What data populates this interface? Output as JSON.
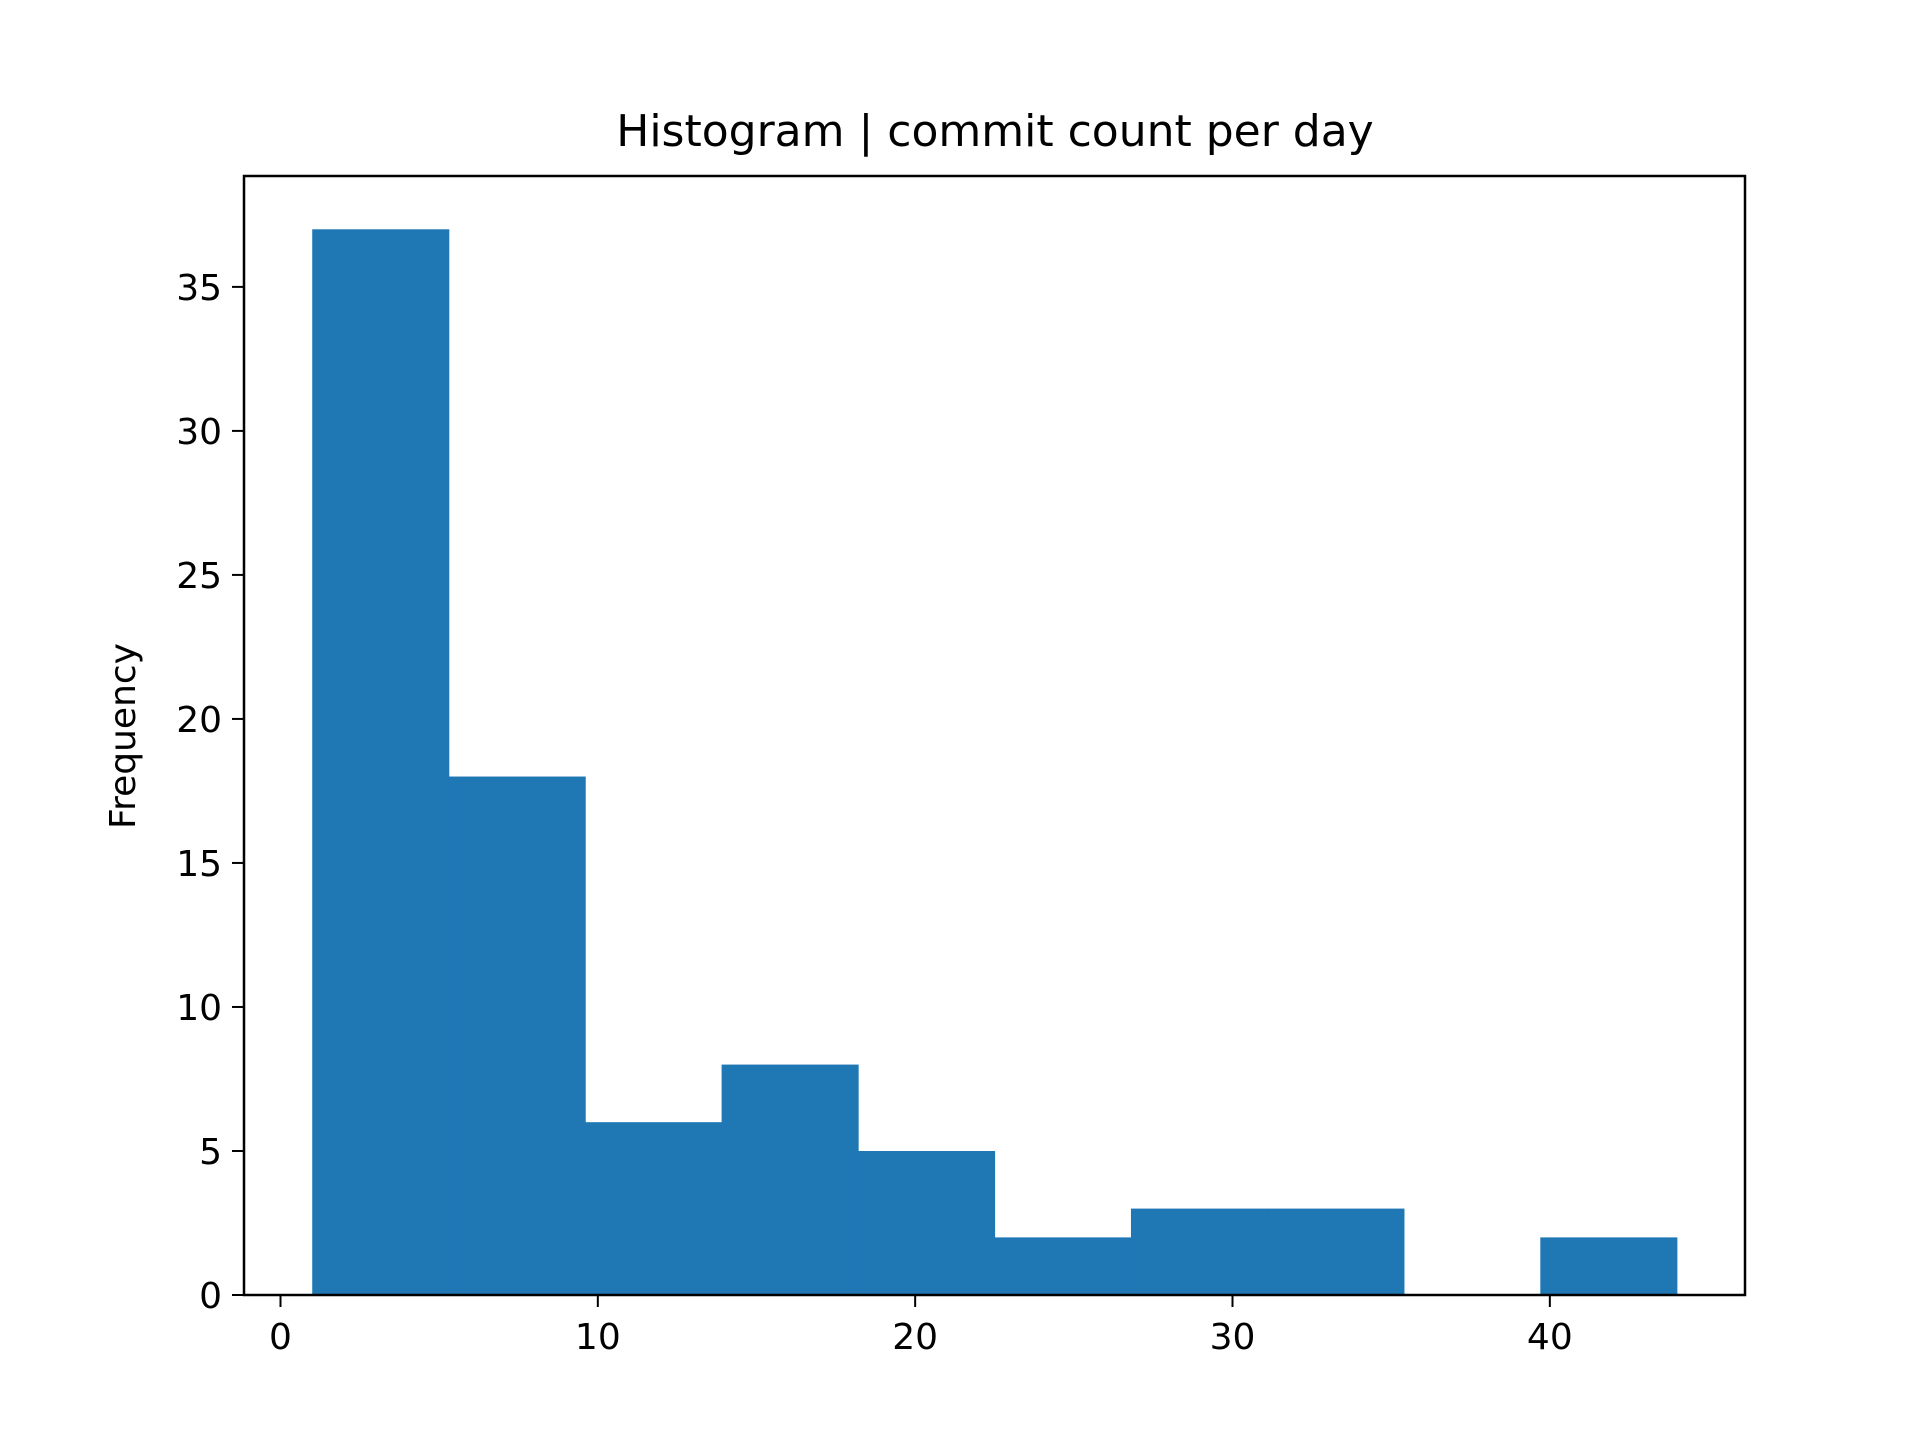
{
  "chart_data": {
    "type": "bar",
    "subtype": "histogram",
    "title": "Histogram | commit count per day",
    "xlabel": "",
    "ylabel": "Frequency",
    "bins": [
      {
        "x0": 1.0,
        "x1": 5.3,
        "count": 37
      },
      {
        "x0": 5.3,
        "x1": 9.6,
        "count": 18
      },
      {
        "x0": 9.6,
        "x1": 13.9,
        "count": 6
      },
      {
        "x0": 13.9,
        "x1": 18.2,
        "count": 8
      },
      {
        "x0": 18.2,
        "x1": 22.5,
        "count": 5
      },
      {
        "x0": 22.5,
        "x1": 26.8,
        "count": 2
      },
      {
        "x0": 26.8,
        "x1": 31.1,
        "count": 3
      },
      {
        "x0": 31.1,
        "x1": 35.4,
        "count": 3
      },
      {
        "x0": 35.4,
        "x1": 39.7,
        "count": 0
      },
      {
        "x0": 39.7,
        "x1": 44.0,
        "count": 2
      }
    ],
    "xlim": [
      -1.15,
      46.15
    ],
    "ylim": [
      0,
      38.85
    ],
    "xticks": [
      0,
      10,
      20,
      30,
      40
    ],
    "yticks": [
      0,
      5,
      10,
      15,
      20,
      25,
      30,
      35
    ],
    "bar_color": "#1f77b4",
    "grid": false,
    "legend": "none"
  }
}
